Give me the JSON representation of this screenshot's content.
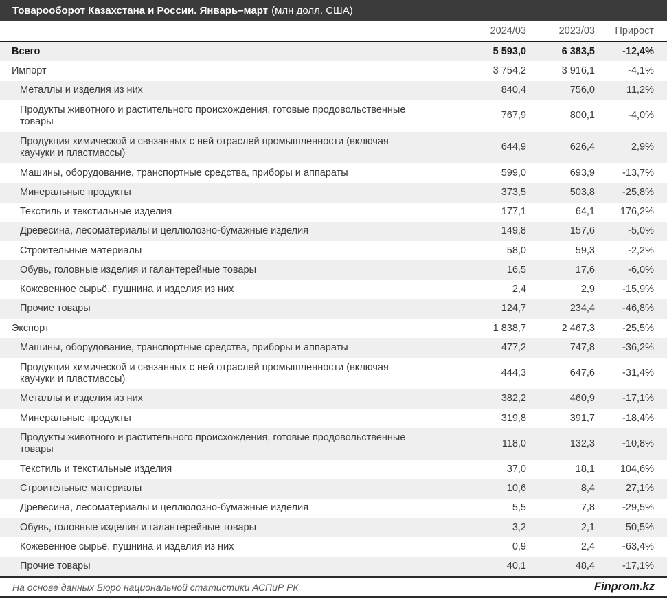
{
  "title": {
    "main": "Товарооборот Казахстана и России. Январь–март",
    "unit": "(млн долл. США)"
  },
  "colors": {
    "title_bar_bg": "#3b3b3b",
    "title_text": "#ffffff",
    "row_alt_bg": "#efefef",
    "header_text": "#595959",
    "divider": "#1a1a1a"
  },
  "chart_data": {
    "type": "table",
    "title": "Товарооборот Казахстана и России. Январь–март (млн долл. США)",
    "columns": [
      "",
      "2024/03",
      "2023/03",
      "Прирост"
    ],
    "rows": [
      {
        "label": "Всего",
        "level": 0,
        "bold": true,
        "v2024": "5 593,0",
        "v2023": "6 383,5",
        "growth": "-12,4%"
      },
      {
        "label": "Импорт",
        "level": 0,
        "bold": false,
        "v2024": "3 754,2",
        "v2023": "3 916,1",
        "growth": "-4,1%"
      },
      {
        "label": "Металлы и изделия из них",
        "level": 1,
        "bold": false,
        "v2024": "840,4",
        "v2023": "756,0",
        "growth": "11,2%"
      },
      {
        "label": "Продукты животного и растительного происхождения, готовые продовольственные товары",
        "level": 1,
        "bold": false,
        "v2024": "767,9",
        "v2023": "800,1",
        "growth": "-4,0%"
      },
      {
        "label": "Продукция химической и связанных с ней отраслей промышленности (включая каучуки и пластмассы)",
        "level": 1,
        "bold": false,
        "v2024": "644,9",
        "v2023": "626,4",
        "growth": "2,9%"
      },
      {
        "label": "Машины, оборудование, транспортные средства, приборы и аппараты",
        "level": 1,
        "bold": false,
        "v2024": "599,0",
        "v2023": "693,9",
        "growth": "-13,7%"
      },
      {
        "label": "Минеральные продукты",
        "level": 1,
        "bold": false,
        "v2024": "373,5",
        "v2023": "503,8",
        "growth": "-25,8%"
      },
      {
        "label": "Текстиль и текстильные изделия",
        "level": 1,
        "bold": false,
        "v2024": "177,1",
        "v2023": "64,1",
        "growth": "176,2%"
      },
      {
        "label": "Древесина, лесоматериалы и целлюлозно-бумажные изделия",
        "level": 1,
        "bold": false,
        "v2024": "149,8",
        "v2023": "157,6",
        "growth": "-5,0%"
      },
      {
        "label": "Строительные материалы",
        "level": 1,
        "bold": false,
        "v2024": "58,0",
        "v2023": "59,3",
        "growth": "-2,2%"
      },
      {
        "label": "Обувь, головные изделия и галантерейные товары",
        "level": 1,
        "bold": false,
        "v2024": "16,5",
        "v2023": "17,6",
        "growth": "-6,0%"
      },
      {
        "label": "Кожевенное сырьё, пушнина и изделия из них",
        "level": 1,
        "bold": false,
        "v2024": "2,4",
        "v2023": "2,9",
        "growth": "-15,9%"
      },
      {
        "label": "Прочие товары",
        "level": 1,
        "bold": false,
        "v2024": "124,7",
        "v2023": "234,4",
        "growth": "-46,8%"
      },
      {
        "label": "Экспорт",
        "level": 0,
        "bold": false,
        "v2024": "1 838,7",
        "v2023": "2 467,3",
        "growth": "-25,5%"
      },
      {
        "label": "Машины, оборудование, транспортные средства, приборы и аппараты",
        "level": 1,
        "bold": false,
        "v2024": "477,2",
        "v2023": "747,8",
        "growth": "-36,2%"
      },
      {
        "label": "Продукция химической и связанных с ней отраслей промышленности (включая каучуки и пластмассы)",
        "level": 1,
        "bold": false,
        "v2024": "444,3",
        "v2023": "647,6",
        "growth": "-31,4%"
      },
      {
        "label": "Металлы и изделия из них",
        "level": 1,
        "bold": false,
        "v2024": "382,2",
        "v2023": "460,9",
        "growth": "-17,1%"
      },
      {
        "label": "Минеральные продукты",
        "level": 1,
        "bold": false,
        "v2024": "319,8",
        "v2023": "391,7",
        "growth": "-18,4%"
      },
      {
        "label": "Продукты животного и растительного происхождения, готовые продовольственные товары",
        "level": 1,
        "bold": false,
        "v2024": "118,0",
        "v2023": "132,3",
        "growth": "-10,8%"
      },
      {
        "label": "Текстиль и текстильные изделия",
        "level": 1,
        "bold": false,
        "v2024": "37,0",
        "v2023": "18,1",
        "growth": "104,6%"
      },
      {
        "label": "Строительные материалы",
        "level": 1,
        "bold": false,
        "v2024": "10,6",
        "v2023": "8,4",
        "growth": "27,1%"
      },
      {
        "label": "Древесина, лесоматериалы и целлюлозно-бумажные изделия",
        "level": 1,
        "bold": false,
        "v2024": "5,5",
        "v2023": "7,8",
        "growth": "-29,5%"
      },
      {
        "label": "Обувь, головные изделия и галантерейные товары",
        "level": 1,
        "bold": false,
        "v2024": "3,2",
        "v2023": "2,1",
        "growth": "50,5%"
      },
      {
        "label": "Кожевенное сырьё, пушнина и изделия из них",
        "level": 1,
        "bold": false,
        "v2024": "0,9",
        "v2023": "2,4",
        "growth": "-63,4%"
      },
      {
        "label": "Прочие товары",
        "level": 1,
        "bold": false,
        "v2024": "40,1",
        "v2023": "48,4",
        "growth": "-17,1%"
      }
    ]
  },
  "footer": {
    "source": "На основе данных Бюро национальной статистики АСПиР РК",
    "brand": "Finprom.kz"
  }
}
